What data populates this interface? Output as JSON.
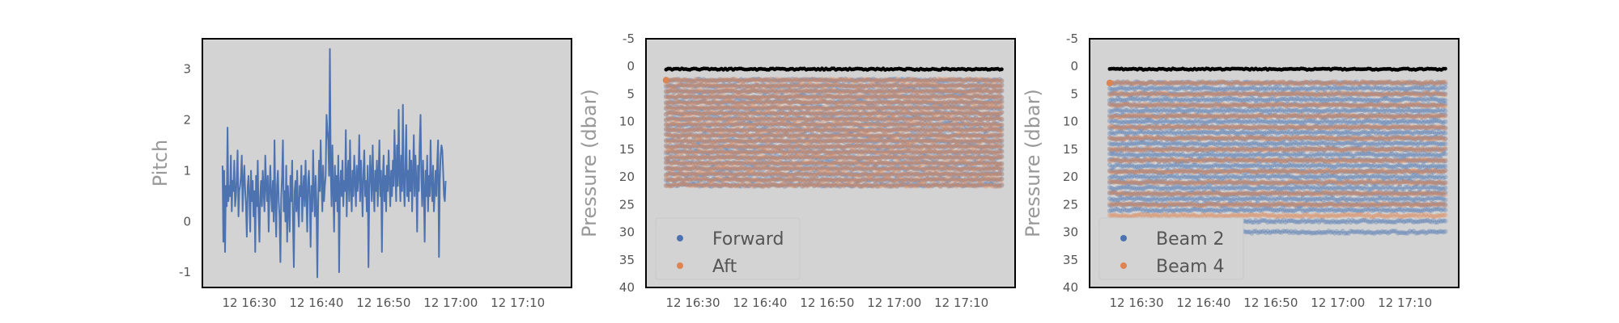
{
  "figure": {
    "background": "#ffffff",
    "panel_background": "#d3d3d3"
  },
  "chart_data": [
    {
      "type": "line",
      "xlabel": "",
      "ylabel": "Pitch",
      "ylim": [
        -1.3,
        3.6
      ],
      "yticks": [
        -1,
        0,
        1,
        2,
        3
      ],
      "xlim": [
        "16:23",
        "17:18"
      ],
      "xticks": [
        "12 16:30",
        "12 16:40",
        "12 16:50",
        "12 17:00",
        "12 17:10"
      ],
      "grid": false,
      "series": [
        {
          "color": "#4c72b0",
          "x_start": "16:26",
          "x_step_minutes": 0.125,
          "values": [
            1.1,
            -0.4,
            1.0,
            -0.6,
            0.7,
            0.3,
            1.85,
            0.4,
            0.7,
            0.5,
            1.3,
            0.2,
            0.8,
            0.6,
            1.2,
            0.3,
            0.5,
            0.9,
            1.4,
            0.1,
            0.6,
            0.7,
            0.9,
            1.3,
            0.2,
            0.8,
            1.1,
            0.6,
            0.3,
            -0.3,
            0.7,
            0.9,
            0.5,
            -0.2,
            1.0,
            0.4,
            0.8,
            0.1,
            0.6,
            -0.6,
            0.9,
            0.3,
            1.2,
            0.2,
            -0.4,
            0.5,
            0.8,
            0.3,
            1.0,
            0.6,
            0.2,
            1.3,
            0.7,
            0.4,
            0.9,
            -0.2,
            0.6,
            1.1,
            0.5,
            0.2,
            0.8,
            0.0,
            1.6,
            0.3,
            -0.3,
            0.7,
            1.0,
            0.4,
            0.1,
            -0.8,
            0.5,
            0.9,
            1.6,
            0.2,
            0.6,
            0.0,
            1.1,
            -0.4,
            0.7,
            0.3,
            -0.2,
            0.9,
            0.4,
            1.2,
            0.0,
            -0.9,
            0.6,
            0.8,
            0.2,
            1.0,
            0.3,
            -0.1,
            0.7,
            0.5,
            1.1,
            0.0,
            0.6,
            0.9,
            0.3,
            1.2,
            0.5,
            -0.2,
            0.8,
            1.0,
            0.4,
            -0.5,
            0.7,
            0.2,
            1.4,
            0.6,
            0.1,
            0.9,
            0.4,
            -1.1,
            0.3,
            1.2,
            0.6,
            1.6,
            0.8,
            0.2,
            1.1,
            0.4,
            0.7,
            0.9,
            2.1,
            1.8,
            1.6,
            0.9,
            3.4,
            1.0,
            0.3,
            1.5,
            0.6,
            -0.2,
            1.1,
            0.4,
            0.9,
            0.2,
            1.3,
            -1.0,
            0.7,
            1.0,
            0.5,
            1.2,
            0.3,
            0.8,
            0.6,
            1.8,
            0.1,
            0.9,
            1.2,
            0.4,
            1.6,
            0.7,
            0.2,
            1.0,
            0.5,
            1.3,
            0.8,
            0.3,
            1.1,
            0.6,
            0.9,
            1.7,
            0.4,
            1.2,
            0.7,
            0.1,
            1.0,
            1.4,
            0.5,
            0.8,
            0.2,
            1.1,
            -0.9,
            0.6,
            1.3,
            0.9,
            0.4,
            1.5,
            0.7,
            0.2,
            1.0,
            0.6,
            1.2,
            0.3,
            0.9,
            1.6,
            0.5,
            1.0,
            -0.6,
            0.8,
            1.3,
            0.4,
            0.9,
            0.2,
            1.1,
            0.6,
            1.4,
            0.8,
            0.3,
            1.0,
            0.5,
            1.2,
            0.7,
            1.8,
            1.0,
            0.4,
            1.5,
            0.7,
            2.2,
            1.0,
            0.4,
            1.3,
            0.6,
            2.3,
            0.8,
            0.3,
            1.1,
            1.9,
            0.5,
            1.0,
            0.4,
            1.4,
            0.6,
            1.2,
            0.2,
            0.9,
            1.7,
            0.5,
            1.3,
            0.8,
            -0.2,
            1.1,
            0.6,
            1.5,
            2.1,
            0.9,
            0.3,
            1.2,
            0.6,
            -0.4,
            1.0,
            0.5,
            1.3,
            0.2,
            0.9,
            0.5,
            1.6,
            0.8,
            0.4,
            1.1,
            0.2,
            0.6,
            1.0,
            0.5,
            1.2,
            1.6,
            -0.7,
            0.8,
            1.3,
            1.5,
            1.4,
            1.0,
            0.5,
            0.4,
            0.8
          ]
        }
      ]
    },
    {
      "type": "scatter",
      "xlabel": "",
      "ylabel": "Pressure (dbar)",
      "ylim": [
        40,
        -5
      ],
      "yticks": [
        -5,
        0,
        5,
        10,
        15,
        20,
        25,
        30,
        35,
        40
      ],
      "y_inverted": true,
      "xlim": [
        "16:23",
        "17:18"
      ],
      "xticks": [
        "12 16:30",
        "12 16:40",
        "12 16:50",
        "12 17:00",
        "12 17:10"
      ],
      "grid": false,
      "legend": {
        "placement": "lower-left",
        "entries": [
          "Forward",
          "Aft"
        ]
      },
      "series": [
        {
          "name": "Forward",
          "color": "#4c72b0",
          "x_range": [
            "16:26",
            "17:16"
          ],
          "bins_depth": [
            2.5,
            3.5,
            4.5,
            5.5,
            6.5,
            7.5,
            8.5,
            9.5,
            10.5,
            11.5,
            12.5,
            13.5,
            14.5,
            15.5,
            16.5,
            17.5,
            18.5,
            19.5,
            20.5,
            21.5
          ]
        },
        {
          "name": "Aft",
          "color": "#dd8452",
          "x_range": [
            "16:26",
            "17:16"
          ],
          "bins_depth": [
            2.5,
            3.5,
            4.5,
            5.5,
            6.5,
            7.5,
            8.5,
            9.5,
            10.5,
            11.5,
            12.5,
            13.5,
            14.5,
            15.5,
            16.5,
            17.5,
            18.5,
            19.5,
            20.5,
            21.5
          ]
        },
        {
          "color": "#000000",
          "x_range": [
            "16:26",
            "17:16"
          ],
          "depth": 0.5
        }
      ]
    },
    {
      "type": "scatter",
      "xlabel": "",
      "ylabel": "Pressure (dbar)",
      "ylim": [
        40,
        -5
      ],
      "yticks": [
        -5,
        0,
        5,
        10,
        15,
        20,
        25,
        30,
        35,
        40
      ],
      "y_inverted": true,
      "xlim": [
        "16:23",
        "17:18"
      ],
      "xticks": [
        "12 16:30",
        "12 16:40",
        "12 16:50",
        "12 17:00",
        "12 17:10"
      ],
      "grid": false,
      "legend": {
        "placement": "lower-left",
        "entries": [
          "Beam 2",
          "Beam 4"
        ]
      },
      "series": [
        {
          "name": "Beam 2",
          "color": "#4c72b0",
          "x_range": [
            "16:26",
            "17:16"
          ],
          "bins_depth": [
            3,
            4,
            5,
            6,
            7,
            8,
            9,
            10,
            11,
            12,
            13,
            14,
            15,
            16,
            17,
            18,
            19,
            20,
            21,
            22,
            23,
            24,
            25,
            26,
            28,
            30
          ]
        },
        {
          "name": "Beam 4",
          "color": "#dd8452",
          "x_range": [
            "16:26",
            "17:16"
          ],
          "bins_depth": [
            3,
            5,
            7,
            9,
            11,
            13,
            15,
            17,
            19,
            21,
            23,
            25,
            27
          ]
        },
        {
          "color": "#000000",
          "x_range": [
            "16:26",
            "17:16"
          ],
          "depth": 0.5
        }
      ]
    }
  ]
}
